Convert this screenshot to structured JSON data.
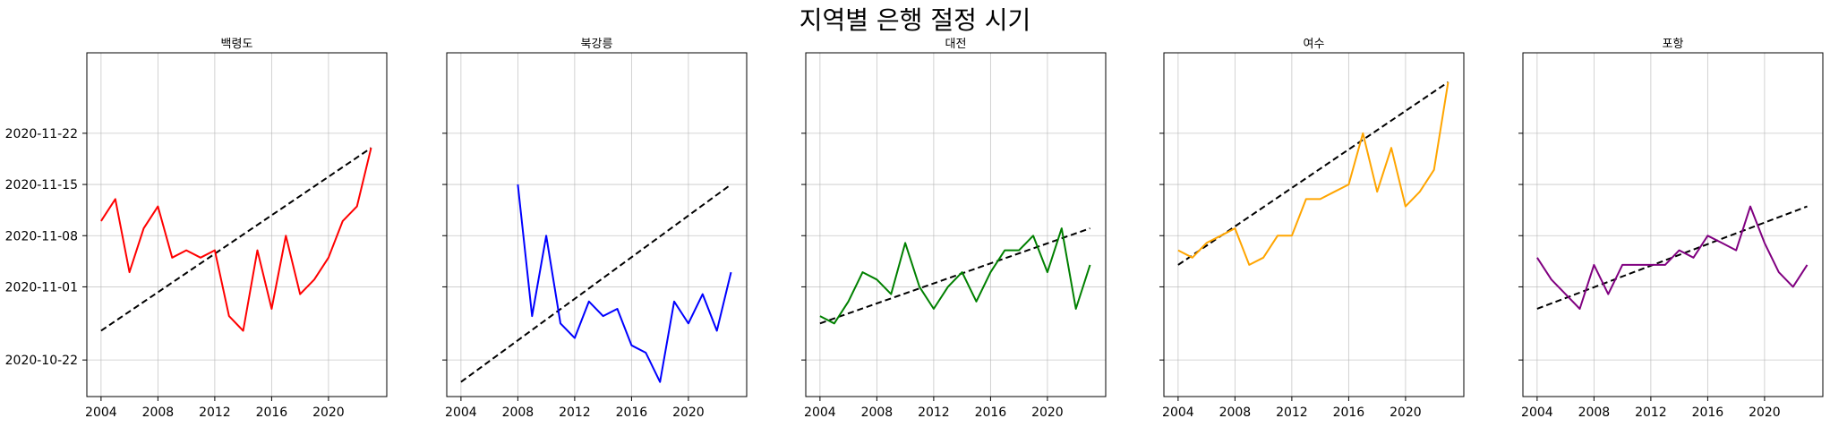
{
  "figure": {
    "title": "지역별 은행 절정 시기"
  },
  "chart_data": [
    {
      "type": "line",
      "title": "백령도",
      "color": "#ff0000",
      "x": [
        2004,
        2005,
        2006,
        2007,
        2008,
        2009,
        2010,
        2011,
        2012,
        2013,
        2014,
        2015,
        2016,
        2017,
        2018,
        2019,
        2020,
        2021,
        2022,
        2023
      ],
      "y": [
        "2020-11-10",
        "2020-11-13",
        "2020-11-03",
        "2020-11-09",
        "2020-11-12",
        "2020-11-05",
        "2020-11-06",
        "2020-11-05",
        "2020-11-06",
        "2020-10-28",
        "2020-10-26",
        "2020-11-06",
        "2020-10-29",
        "2020-11-08",
        "2020-10-31",
        "2020-11-02",
        "2020-11-05",
        "2020-11-10",
        "2020-11-12",
        "2020-11-20"
      ],
      "trend": {
        "x": [
          2004,
          2023
        ],
        "y": [
          "2020-10-26",
          "2020-11-20"
        ],
        "style": "dashed",
        "color": "#000000"
      },
      "x_ticks": [
        "2004",
        "2008",
        "2012",
        "2016",
        "2020"
      ],
      "y_ticks": [
        "2020-10-22",
        "2020-11-01",
        "2020-11-08",
        "2020-11-15",
        "2020-11-22"
      ],
      "xlim": [
        2003,
        2024.1
      ],
      "ylim": [
        "2020-10-17",
        "2020-12-03"
      ],
      "grid": true
    },
    {
      "type": "line",
      "title": "북강릉",
      "color": "#0000ff",
      "x": [
        2008,
        2009,
        2010,
        2011,
        2012,
        2013,
        2014,
        2015,
        2016,
        2017,
        2018,
        2019,
        2020,
        2021,
        2022,
        2023
      ],
      "y": [
        "2020-11-15",
        "2020-10-28",
        "2020-11-08",
        "2020-10-27",
        "2020-10-25",
        "2020-10-30",
        "2020-10-28",
        "2020-10-29",
        "2020-10-24",
        "2020-10-23",
        "2020-10-19",
        "2020-10-30",
        "2020-10-27",
        "2020-10-31",
        "2020-10-26",
        "2020-11-03"
      ],
      "trend": {
        "x": [
          2004,
          2023
        ],
        "y": [
          "2020-10-19",
          "2020-11-15"
        ],
        "style": "dashed",
        "color": "#000000"
      },
      "x_ticks": [
        "2004",
        "2008",
        "2012",
        "2016",
        "2020"
      ],
      "xlim": [
        2003,
        2024.1
      ],
      "ylim": [
        "2020-10-17",
        "2020-12-03"
      ],
      "grid": true
    },
    {
      "type": "line",
      "title": "대전",
      "color": "#008000",
      "x": [
        2004,
        2005,
        2006,
        2007,
        2008,
        2009,
        2010,
        2011,
        2012,
        2013,
        2014,
        2015,
        2016,
        2017,
        2018,
        2019,
        2020,
        2021,
        2022,
        2023
      ],
      "y": [
        "2020-10-28",
        "2020-10-27",
        "2020-10-30",
        "2020-11-03",
        "2020-11-02",
        "2020-10-31",
        "2020-11-07",
        "2020-11-01",
        "2020-10-29",
        "2020-11-01",
        "2020-11-03",
        "2020-10-30",
        "2020-11-03",
        "2020-11-06",
        "2020-11-06",
        "2020-11-08",
        "2020-11-03",
        "2020-11-09",
        "2020-10-29",
        "2020-11-04"
      ],
      "trend": {
        "x": [
          2004,
          2023
        ],
        "y": [
          "2020-10-27",
          "2020-11-09"
        ],
        "style": "dashed",
        "color": "#000000"
      },
      "x_ticks": [
        "2004",
        "2008",
        "2012",
        "2016",
        "2020"
      ],
      "xlim": [
        2003,
        2024.1
      ],
      "ylim": [
        "2020-10-17",
        "2020-12-03"
      ],
      "grid": true
    },
    {
      "type": "line",
      "title": "여수",
      "color": "#ffa500",
      "x": [
        2004,
        2005,
        2006,
        2007,
        2008,
        2009,
        2010,
        2011,
        2012,
        2013,
        2014,
        2015,
        2016,
        2017,
        2018,
        2019,
        2020,
        2021,
        2022,
        2023
      ],
      "y": [
        "2020-11-06",
        "2020-11-05",
        "2020-11-07",
        "2020-11-08",
        "2020-11-09",
        "2020-11-04",
        "2020-11-05",
        "2020-11-08",
        "2020-11-08",
        "2020-11-13",
        "2020-11-13",
        "2020-11-14",
        "2020-11-15",
        "2020-11-22",
        "2020-11-14",
        "2020-11-20",
        "2020-11-12",
        "2020-11-14",
        "2020-11-17",
        "2020-11-29"
      ],
      "trend": {
        "x": [
          2004,
          2023
        ],
        "y": [
          "2020-11-04",
          "2020-11-29"
        ],
        "style": "dashed",
        "color": "#000000"
      },
      "x_ticks": [
        "2004",
        "2008",
        "2012",
        "2016",
        "2020"
      ],
      "xlim": [
        2003,
        2024.1
      ],
      "ylim": [
        "2020-10-17",
        "2020-12-03"
      ],
      "grid": true
    },
    {
      "type": "line",
      "title": "포항",
      "color": "#800080",
      "x": [
        2004,
        2005,
        2006,
        2007,
        2008,
        2009,
        2010,
        2011,
        2012,
        2013,
        2014,
        2015,
        2016,
        2017,
        2018,
        2019,
        2020,
        2021,
        2022,
        2023
      ],
      "y": [
        "2020-11-05",
        "2020-11-02",
        "2020-10-31",
        "2020-10-29",
        "2020-11-04",
        "2020-10-31",
        "2020-11-04",
        "2020-11-04",
        "2020-11-04",
        "2020-11-04",
        "2020-11-06",
        "2020-11-05",
        "2020-11-08",
        "2020-11-07",
        "2020-11-06",
        "2020-11-12",
        "2020-11-07",
        "2020-11-03",
        "2020-11-01",
        "2020-11-04"
      ],
      "trend": {
        "x": [
          2004,
          2023
        ],
        "y": [
          "2020-10-29",
          "2020-11-12"
        ],
        "style": "dashed",
        "color": "#000000"
      },
      "x_ticks": [
        "2004",
        "2008",
        "2012",
        "2016",
        "2020"
      ],
      "xlim": [
        2003,
        2024.1
      ],
      "ylim": [
        "2020-10-17",
        "2020-12-03"
      ],
      "grid": true
    }
  ]
}
